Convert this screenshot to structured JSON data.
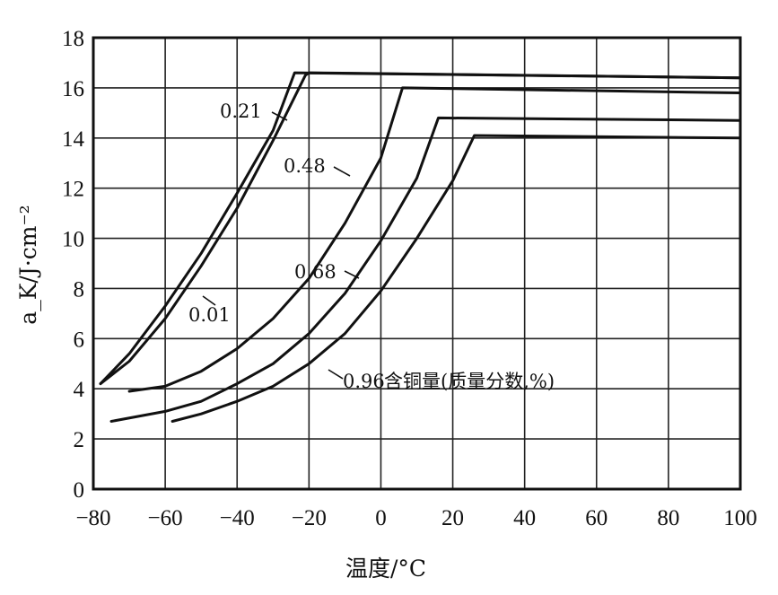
{
  "chart_data": {
    "type": "line",
    "xlabel": "温度/°C",
    "ylabel": "a_K/J·cm⁻²",
    "xlim": [
      -80,
      100
    ],
    "ylim": [
      0,
      18
    ],
    "x_ticks": [
      -80,
      -60,
      -40,
      -20,
      0,
      20,
      40,
      60,
      80,
      100
    ],
    "y_ticks": [
      0,
      2,
      4,
      6,
      8,
      10,
      12,
      14,
      16,
      18
    ],
    "x_tick_labels": [
      "−80",
      "−60",
      "−40",
      "−20",
      "0",
      "20",
      "40",
      "60",
      "80",
      "100"
    ],
    "y_tick_labels": [
      "0",
      "2",
      "4",
      "6",
      "8",
      "10",
      "12",
      "14",
      "16",
      "18"
    ],
    "grid": true,
    "legend_title": "含铜量(质量分数,%)",
    "series": [
      {
        "name": "0.01",
        "points": [
          [
            -78,
            4.2
          ],
          [
            -70,
            5.1
          ],
          [
            -60,
            6.8
          ],
          [
            -50,
            8.9
          ],
          [
            -40,
            11.2
          ],
          [
            -30,
            13.9
          ],
          [
            -21,
            16.5
          ],
          [
            -20,
            16.6
          ],
          [
            100,
            16.4
          ]
        ]
      },
      {
        "name": "0.21",
        "points": [
          [
            -78,
            4.2
          ],
          [
            -70,
            5.4
          ],
          [
            -60,
            7.3
          ],
          [
            -50,
            9.4
          ],
          [
            -40,
            11.8
          ],
          [
            -30,
            14.3
          ],
          [
            -24,
            16.6
          ],
          [
            100,
            16.4
          ]
        ]
      },
      {
        "name": "0.48",
        "points": [
          [
            -70,
            3.9
          ],
          [
            -60,
            4.1
          ],
          [
            -50,
            4.7
          ],
          [
            -40,
            5.6
          ],
          [
            -30,
            6.8
          ],
          [
            -20,
            8.4
          ],
          [
            -10,
            10.6
          ],
          [
            0,
            13.2
          ],
          [
            6,
            16.0
          ],
          [
            100,
            15.8
          ]
        ]
      },
      {
        "name": "0.68",
        "points": [
          [
            -75,
            2.7
          ],
          [
            -60,
            3.1
          ],
          [
            -50,
            3.5
          ],
          [
            -40,
            4.2
          ],
          [
            -30,
            5.0
          ],
          [
            -20,
            6.2
          ],
          [
            -10,
            7.8
          ],
          [
            0,
            9.9
          ],
          [
            10,
            12.4
          ],
          [
            16,
            14.8
          ],
          [
            100,
            14.7
          ]
        ]
      },
      {
        "name": "0.96",
        "points": [
          [
            -58,
            2.7
          ],
          [
            -50,
            3.0
          ],
          [
            -40,
            3.5
          ],
          [
            -30,
            4.1
          ],
          [
            -20,
            5.0
          ],
          [
            -10,
            6.2
          ],
          [
            0,
            7.9
          ],
          [
            10,
            10.0
          ],
          [
            20,
            12.3
          ],
          [
            26,
            14.1
          ],
          [
            100,
            14.0
          ]
        ]
      }
    ],
    "labels": [
      {
        "text": "0.21"
      },
      {
        "text": "0.48"
      },
      {
        "text": "0.68"
      },
      {
        "text": "0.01"
      },
      {
        "text": "0.96"
      }
    ]
  }
}
